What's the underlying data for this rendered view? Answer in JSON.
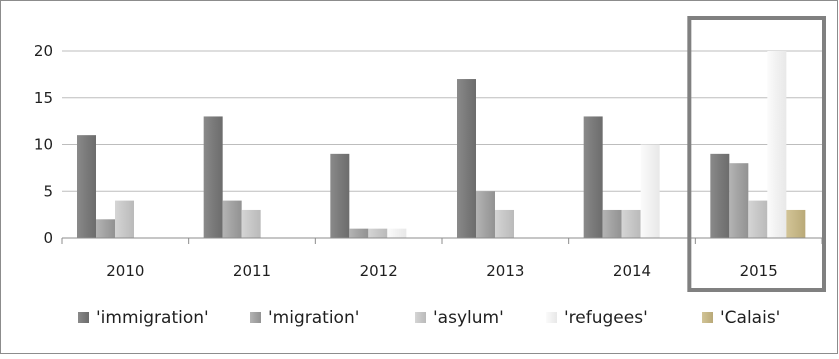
{
  "chart_data": {
    "type": "bar",
    "categories": [
      "2010",
      "2011",
      "2012",
      "2013",
      "2014",
      "2015"
    ],
    "series": [
      {
        "name": "'immigration'",
        "values": [
          11,
          13,
          9,
          17,
          13,
          9
        ]
      },
      {
        "name": "'migration'",
        "values": [
          2,
          4,
          1,
          5,
          3,
          8
        ]
      },
      {
        "name": "'asylum'",
        "values": [
          4,
          3,
          1,
          3,
          3,
          4
        ]
      },
      {
        "name": "'refugees'",
        "values": [
          0,
          0,
          1,
          0,
          10,
          20
        ]
      },
      {
        "name": "'Calais'",
        "values": [
          0,
          0,
          0,
          0,
          0,
          3
        ]
      }
    ],
    "colors": [
      "#7f7f7f",
      "#a5a5a5",
      "#c9c9c9",
      "#f2f2f2",
      "#c8b98a"
    ],
    "ylim": [
      0,
      20
    ],
    "yticks": [
      0,
      5,
      10,
      15,
      20
    ],
    "grid": true,
    "legend": "bottom",
    "highlight_category": "2015"
  }
}
